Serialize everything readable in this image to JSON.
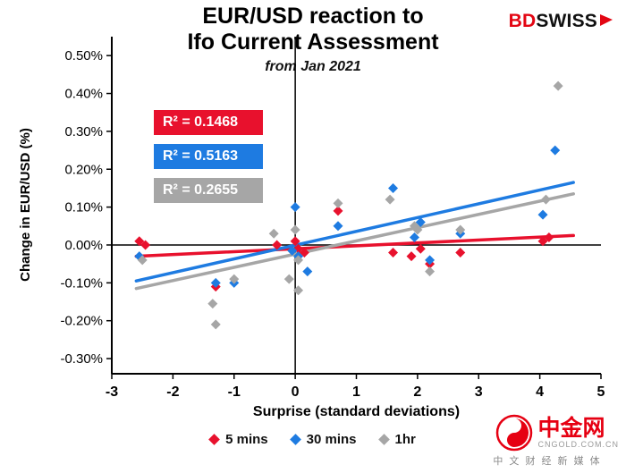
{
  "header": {
    "title_line1": "EUR/USD reaction to",
    "title_line2": "Ifo Current Assessment",
    "subtitle": "from Jan 2021"
  },
  "logo": {
    "part1": "BD",
    "part2": "SWISS"
  },
  "r2_labels": [
    {
      "text": "R² = 0.1468",
      "color": "#e8112d"
    },
    {
      "text": "R² = 0.5163",
      "color": "#1e7be1"
    },
    {
      "text": "R² = 0.2655",
      "color": "#a6a6a6"
    }
  ],
  "chart_data": {
    "type": "scatter",
    "title": "EUR/USD reaction to Ifo Current Assessment",
    "subtitle": "from Jan 2021",
    "xlabel": "Surprise (standard deviations)",
    "ylabel": "Change in EUR/USD (%)",
    "xlim": [
      -3,
      5
    ],
    "ylim": [
      -0.34,
      0.55
    ],
    "xticks": [
      -3,
      -2,
      -1,
      0,
      1,
      2,
      3,
      4,
      5
    ],
    "yticks": [
      0.5,
      0.4,
      0.3,
      0.2,
      0.1,
      0,
      -0.1,
      -0.2,
      -0.3
    ],
    "grid": "zero-crosshair-only",
    "legend_position": "bottom",
    "series": [
      {
        "name": "5 mins",
        "color": "#e8112d",
        "r2": 0.1468,
        "trend": [
          [
            -2.6,
            -0.03
          ],
          [
            4.55,
            0.025
          ]
        ],
        "points": [
          [
            -2.55,
            0.01
          ],
          [
            -2.45,
            0.0
          ],
          [
            -1.3,
            -0.11
          ],
          [
            -0.3,
            0.0
          ],
          [
            0.0,
            0.01
          ],
          [
            0.05,
            -0.01
          ],
          [
            0.15,
            -0.02
          ],
          [
            0.7,
            0.09
          ],
          [
            1.6,
            -0.02
          ],
          [
            1.9,
            -0.03
          ],
          [
            2.05,
            -0.01
          ],
          [
            2.2,
            -0.05
          ],
          [
            2.7,
            -0.02
          ],
          [
            4.05,
            0.01
          ],
          [
            4.15,
            0.02
          ]
        ]
      },
      {
        "name": "30 mins",
        "color": "#1e7be1",
        "r2": 0.5163,
        "trend": [
          [
            -2.6,
            -0.095
          ],
          [
            4.55,
            0.165
          ]
        ],
        "points": [
          [
            -2.55,
            -0.03
          ],
          [
            -1.3,
            -0.1
          ],
          [
            -1.0,
            -0.1
          ],
          [
            0.0,
            0.1
          ],
          [
            -0.05,
            -0.015
          ],
          [
            0.05,
            -0.03
          ],
          [
            0.2,
            -0.07
          ],
          [
            0.7,
            0.05
          ],
          [
            1.6,
            0.15
          ],
          [
            1.95,
            0.02
          ],
          [
            2.05,
            0.06
          ],
          [
            2.2,
            -0.04
          ],
          [
            2.7,
            0.03
          ],
          [
            4.05,
            0.08
          ],
          [
            4.25,
            0.25
          ]
        ]
      },
      {
        "name": "1hr",
        "color": "#a6a6a6",
        "r2": 0.2655,
        "trend": [
          [
            -2.6,
            -0.115
          ],
          [
            4.55,
            0.135
          ]
        ],
        "points": [
          [
            -2.5,
            -0.04
          ],
          [
            -1.35,
            -0.155
          ],
          [
            -1.3,
            -0.21
          ],
          [
            -1.0,
            -0.09
          ],
          [
            -0.35,
            0.03
          ],
          [
            -0.1,
            -0.09
          ],
          [
            0.0,
            0.04
          ],
          [
            0.05,
            -0.04
          ],
          [
            0.05,
            -0.12
          ],
          [
            0.7,
            0.11
          ],
          [
            1.55,
            0.12
          ],
          [
            1.95,
            0.05
          ],
          [
            2.0,
            0.04
          ],
          [
            2.2,
            -0.07
          ],
          [
            2.7,
            0.04
          ],
          [
            4.1,
            0.12
          ],
          [
            4.3,
            0.42
          ]
        ]
      }
    ]
  },
  "legend": {
    "items": [
      "5 mins",
      "30 mins",
      "1hr"
    ]
  },
  "watermark": {
    "name": "中金网",
    "domain": "CNGOLD.COM.CN",
    "tagline": "中 文 财 经 新 媒 体"
  }
}
